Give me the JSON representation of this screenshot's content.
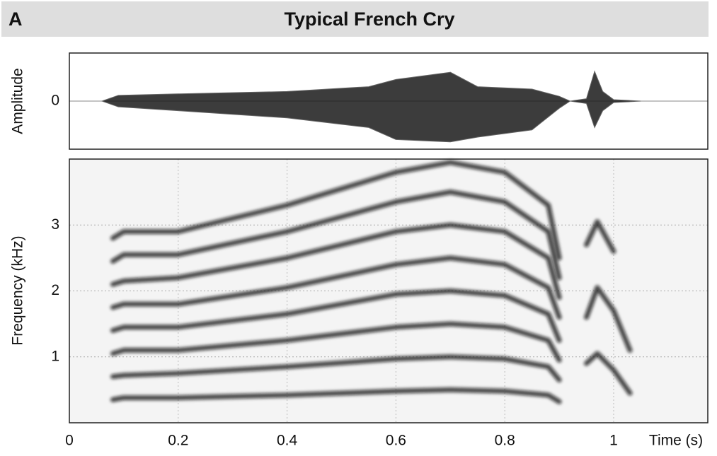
{
  "chart_data": [
    {
      "type": "waveform",
      "panel_label": "A",
      "title": "Typical French Cry",
      "ylabel": "Amplitude",
      "x": [
        0.06,
        0.09,
        0.2,
        0.4,
        0.55,
        0.6,
        0.7,
        0.75,
        0.85,
        0.9,
        0.92,
        0.95,
        0.965,
        0.98,
        1.0,
        1.05
      ],
      "upper": [
        0,
        0.12,
        0.15,
        0.2,
        0.3,
        0.45,
        0.6,
        0.3,
        0.25,
        0.1,
        0,
        0.05,
        0.62,
        0.2,
        0.03,
        0
      ],
      "lower": [
        0,
        -0.12,
        -0.2,
        -0.35,
        -0.55,
        -0.8,
        -0.85,
        -0.75,
        -0.6,
        -0.15,
        0,
        -0.05,
        -0.55,
        -0.2,
        -0.03,
        0
      ],
      "color": "#1a1a1a",
      "xlim": [
        0,
        1.173
      ],
      "ylim": [
        -1,
        1
      ],
      "yticks": [
        0
      ]
    },
    {
      "type": "spectrogram",
      "ylabel": "Frequency (kHz)",
      "xlabel": "Time (s)",
      "x": [
        0.08,
        0.1,
        0.2,
        0.4,
        0.6,
        0.7,
        0.8,
        0.88,
        0.9,
        0.92,
        0.95,
        0.97,
        1.0,
        1.03
      ],
      "color": "#111111",
      "grid": true,
      "series": [
        {
          "values": [
            0.35,
            0.38,
            0.38,
            0.42,
            0.48,
            0.5,
            0.48,
            0.42,
            0.32,
            null,
            0.9,
            1.05,
            0.8,
            0.45
          ]
        },
        {
          "values": [
            0.7,
            0.72,
            0.75,
            0.85,
            0.97,
            1.0,
            0.97,
            0.85,
            0.65,
            null,
            1.6,
            2.05,
            1.7,
            1.1
          ]
        },
        {
          "values": [
            1.05,
            1.1,
            1.1,
            1.25,
            1.45,
            1.5,
            1.45,
            1.25,
            0.95,
            null,
            2.7,
            3.05,
            2.6,
            null
          ]
        },
        {
          "values": [
            1.4,
            1.45,
            1.45,
            1.65,
            1.95,
            2.0,
            1.93,
            1.65,
            1.25,
            null,
            null,
            null,
            null,
            null
          ]
        },
        {
          "values": [
            1.75,
            1.8,
            1.8,
            2.05,
            2.4,
            2.5,
            2.4,
            2.05,
            1.6,
            null,
            null,
            null,
            null,
            null
          ]
        },
        {
          "values": [
            2.1,
            2.15,
            2.2,
            2.5,
            2.9,
            3.0,
            2.9,
            2.5,
            1.9,
            null,
            null,
            null,
            null,
            null
          ]
        },
        {
          "values": [
            2.45,
            2.55,
            2.55,
            2.9,
            3.35,
            3.5,
            3.35,
            2.9,
            2.2,
            null,
            null,
            null,
            null,
            null
          ]
        },
        {
          "values": [
            2.8,
            2.9,
            2.9,
            3.3,
            3.8,
            3.95,
            3.8,
            3.3,
            2.5,
            null,
            null,
            null,
            null,
            null
          ]
        }
      ],
      "xlim": [
        0,
        1.173
      ],
      "ylim": [
        0,
        4
      ],
      "xticks": [
        0,
        0.2,
        0.4,
        0.6,
        0.8,
        1
      ],
      "yticks": [
        1,
        2,
        3
      ]
    }
  ]
}
